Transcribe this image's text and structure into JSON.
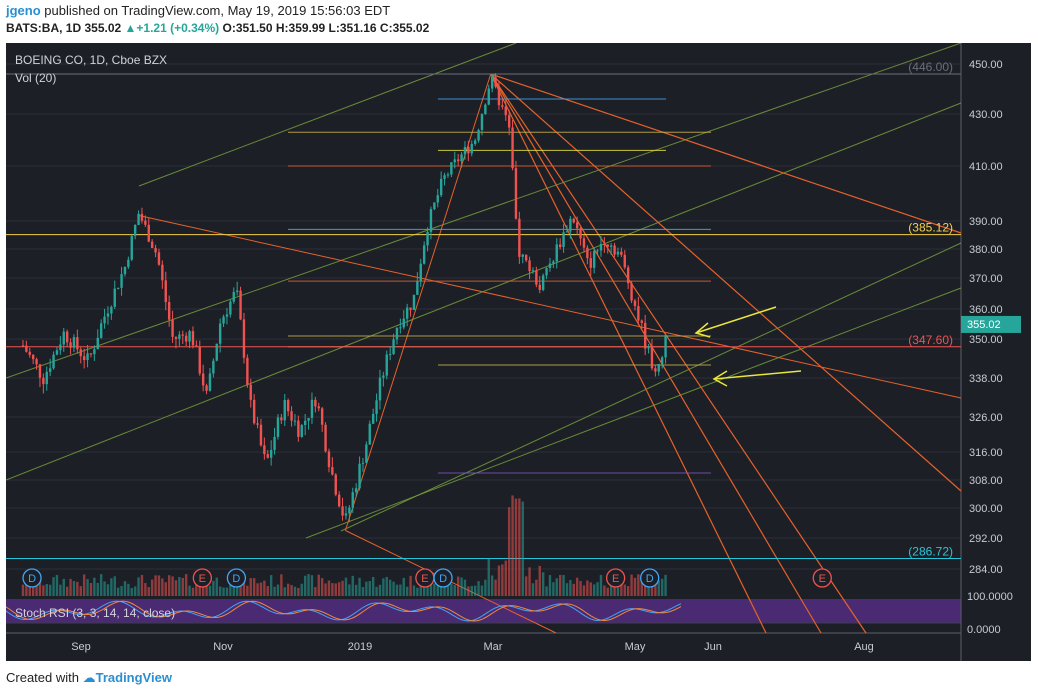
{
  "header": {
    "user": "jgeno",
    "published": " published on TradingView.com, May 19, 2019 15:56:03 EDT",
    "symbol_line": "BATS:BA, 1D",
    "price": "355.02",
    "change": "+1.21 (+0.34%)",
    "ohlc": "O:351.50 H:359.99 L:351.16 C:355.02"
  },
  "legend": {
    "title": "BOEING CO, 1D, Cboe BZX",
    "vol": "Vol (20)",
    "stoch": "Stoch RSI (3, 3, 14, 14, close)"
  },
  "footer": {
    "prefix": "Created with",
    "brand": "TradingView"
  },
  "colors": {
    "background": "#1d1f27",
    "up": "#26a69a",
    "down": "#ef5350",
    "price_badge": "#26a69a",
    "channel": "#7aa63b",
    "fan": "#e5622a",
    "arrow": "#e8e63a",
    "stoch_band": "#4a2a73"
  },
  "chart_data": {
    "type": "candlestick",
    "price_axis_ticks": [
      450.0,
      430.0,
      410.0,
      390.0,
      380.0,
      370.0,
      360.0,
      350.0,
      338.0,
      326.0,
      316.0,
      308.0,
      300.0,
      292.0,
      284.0
    ],
    "stoch_axis_ticks": [
      "100.0000",
      "0.0000"
    ],
    "time_axis_labels": [
      "Sep",
      "Nov",
      "2019",
      "Mar",
      "May",
      "Jun",
      "Aug"
    ],
    "last_price": "355.02",
    "level_labels": [
      {
        "text": "(446.00)",
        "value": 446.0
      },
      {
        "text": "(385.12)",
        "value": 385.12
      },
      {
        "text": "(347.60)",
        "value": 347.6
      },
      {
        "text": "(286.72)",
        "value": 286.72
      }
    ],
    "event_markers": [
      {
        "date": "2018-08-10",
        "type": "D"
      },
      {
        "date": "2018-10-24",
        "type": "E"
      },
      {
        "date": "2018-11-08",
        "type": "D"
      },
      {
        "date": "2019-01-30",
        "type": "E"
      },
      {
        "date": "2019-02-07",
        "type": "D"
      },
      {
        "date": "2019-04-24",
        "type": "E"
      },
      {
        "date": "2019-05-09",
        "type": "D"
      },
      {
        "date": "2019-07-24",
        "type": "E"
      }
    ],
    "price_path": [
      [
        "2018-08-06",
        348
      ],
      [
        "2018-08-15",
        338
      ],
      [
        "2018-08-24",
        352
      ],
      [
        "2018-09-04",
        343
      ],
      [
        "2018-09-10",
        356
      ],
      [
        "2018-09-20",
        374
      ],
      [
        "2018-09-26",
        393
      ],
      [
        "2018-10-04",
        378
      ],
      [
        "2018-10-11",
        350
      ],
      [
        "2018-10-19",
        352
      ],
      [
        "2018-10-26",
        332
      ],
      [
        "2018-11-01",
        356
      ],
      [
        "2018-11-08",
        366
      ],
      [
        "2018-11-14",
        330
      ],
      [
        "2018-11-21",
        312
      ],
      [
        "2018-11-29",
        330
      ],
      [
        "2018-12-06",
        322
      ],
      [
        "2018-12-13",
        332
      ],
      [
        "2018-12-20",
        310
      ],
      [
        "2018-12-26",
        296
      ],
      [
        "2019-01-04",
        318
      ],
      [
        "2019-01-11",
        338
      ],
      [
        "2019-01-18",
        355
      ],
      [
        "2019-01-25",
        363
      ],
      [
        "2019-01-31",
        388
      ],
      [
        "2019-02-07",
        405
      ],
      [
        "2019-02-14",
        413
      ],
      [
        "2019-02-21",
        420
      ],
      [
        "2019-02-28",
        444
      ],
      [
        "2019-03-08",
        425
      ],
      [
        "2019-03-12",
        380
      ],
      [
        "2019-03-15",
        376
      ],
      [
        "2019-03-22",
        367
      ],
      [
        "2019-03-29",
        380
      ],
      [
        "2019-04-05",
        392
      ],
      [
        "2019-04-12",
        374
      ],
      [
        "2019-04-19",
        384
      ],
      [
        "2019-04-26",
        378
      ],
      [
        "2019-05-03",
        360
      ],
      [
        "2019-05-09",
        344
      ],
      [
        "2019-05-13",
        340
      ],
      [
        "2019-05-17",
        355
      ]
    ],
    "annotations": [
      "yellow arrow near 355",
      "yellow arrow near 338"
    ]
  }
}
